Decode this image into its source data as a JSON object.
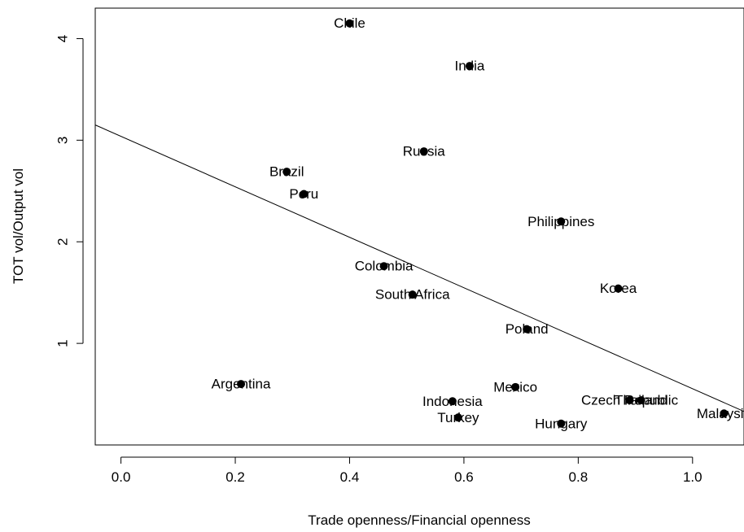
{
  "chart_data": {
    "type": "scatter",
    "title": "",
    "xlabel": "Trade openness/Financial openness",
    "ylabel": "TOT vol/Output vol",
    "xlim": [
      -0.045,
      1.09
    ],
    "ylim": [
      0.0,
      4.3
    ],
    "x_ticks": [
      {
        "value": 0.0,
        "label": "0.0"
      },
      {
        "value": 0.2,
        "label": "0.2"
      },
      {
        "value": 0.4,
        "label": "0.4"
      },
      {
        "value": 0.6,
        "label": "0.6"
      },
      {
        "value": 0.8,
        "label": "0.8"
      },
      {
        "value": 1.0,
        "label": "1.0"
      }
    ],
    "y_ticks": [
      {
        "value": 1,
        "label": "1"
      },
      {
        "value": 2,
        "label": "2"
      },
      {
        "value": 3,
        "label": "3"
      },
      {
        "value": 4,
        "label": "4"
      }
    ],
    "points": [
      {
        "label": "Chile",
        "x": 0.4,
        "y": 4.15
      },
      {
        "label": "India",
        "x": 0.61,
        "y": 3.73
      },
      {
        "label": "Russia",
        "x": 0.53,
        "y": 2.89
      },
      {
        "label": "Brazil",
        "x": 0.29,
        "y": 2.69
      },
      {
        "label": "Peru",
        "x": 0.32,
        "y": 2.47
      },
      {
        "label": "Philippines",
        "x": 0.77,
        "y": 2.2
      },
      {
        "label": "Colombia",
        "x": 0.46,
        "y": 1.76
      },
      {
        "label": "Korea",
        "x": 0.87,
        "y": 1.54
      },
      {
        "label": "South Africa",
        "x": 0.51,
        "y": 1.48
      },
      {
        "label": "Poland",
        "x": 0.71,
        "y": 1.14
      },
      {
        "label": "Argentina",
        "x": 0.21,
        "y": 0.6
      },
      {
        "label": "Mexico",
        "x": 0.69,
        "y": 0.57
      },
      {
        "label": "Indonesia",
        "x": 0.58,
        "y": 0.43
      },
      {
        "label": "Czech Republic",
        "x": 0.89,
        "y": 0.44
      },
      {
        "label": "Thailand",
        "x": 0.91,
        "y": 0.44
      },
      {
        "label": "Turkey",
        "x": 0.59,
        "y": 0.27
      },
      {
        "label": "Hungary",
        "x": 0.77,
        "y": 0.21
      },
      {
        "label": "Malaysia",
        "x": 1.055,
        "y": 0.31
      }
    ],
    "fit_line": {
      "x": [
        -0.045,
        1.09
      ],
      "y": [
        3.15,
        0.33
      ]
    },
    "grid": false,
    "legend": "none"
  }
}
